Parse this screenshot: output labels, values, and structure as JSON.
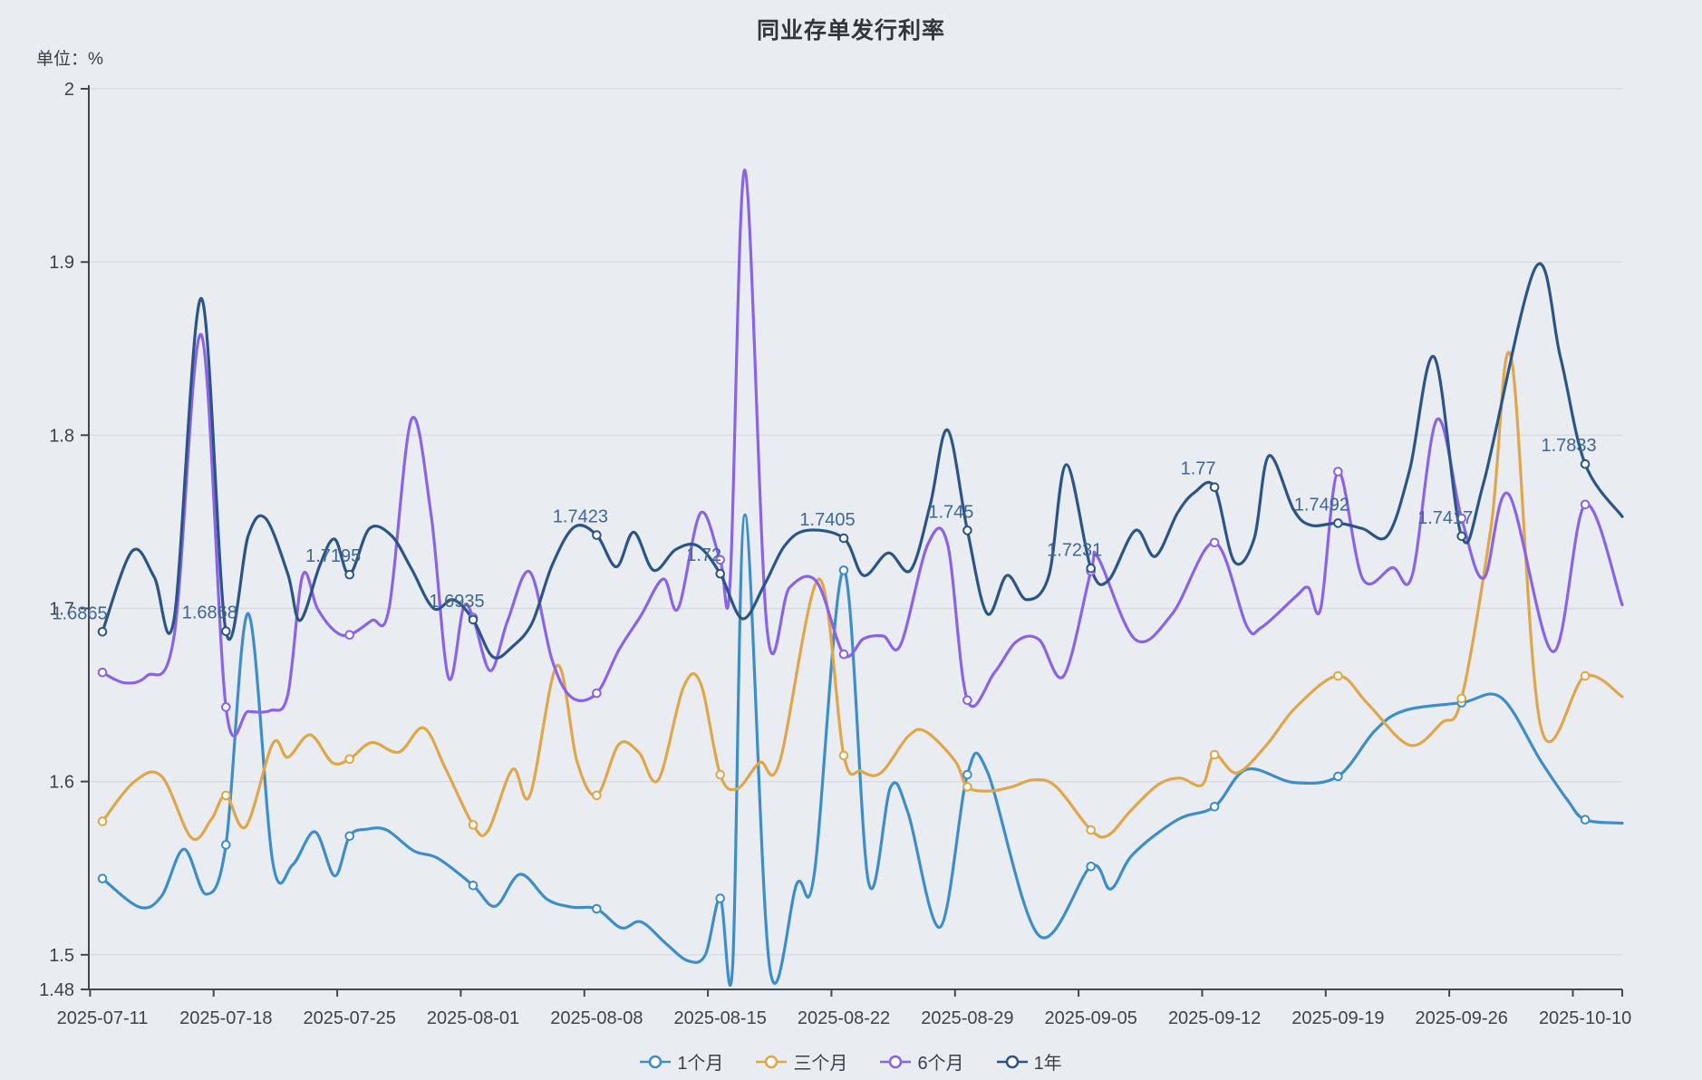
{
  "page": {
    "background": "#e9edf2"
  },
  "chart_data": {
    "type": "line",
    "title": "同业存单发行利率",
    "unit_label": "单位：%",
    "colors": {
      "background": "#e9edf2",
      "grid": "#d6dae0",
      "axis": "#44484e",
      "tick_text": "#3f4347",
      "title_text": "#33373c",
      "data_label_text": "#3e6791",
      "marker_fill": "#ffffff"
    },
    "y_axis": {
      "min": 1.48,
      "max": 2.0,
      "tick_labels": [
        "2",
        "1.9",
        "1.8",
        "1.7",
        "1.6",
        "1.5",
        "1.48"
      ],
      "tick_values": [
        2,
        1.9,
        1.8,
        1.7,
        1.6,
        1.5,
        1.48
      ],
      "grid_values": [
        2,
        1.9,
        1.8,
        1.7,
        1.6,
        1.5
      ]
    },
    "x_axis": {
      "tick_labels": [
        "2025-07-11",
        "2025-07-18",
        "2025-07-25",
        "2025-08-01",
        "2025-08-08",
        "2025-08-15",
        "2025-08-22",
        "2025-08-29",
        "2025-09-05",
        "2025-09-12",
        "2025-09-19",
        "2025-09-26",
        "2025-10-10"
      ],
      "days_per_tick": 5,
      "total_days": 61.5
    },
    "marker_interval_days": 5,
    "legend": [
      "1个月",
      "三个月",
      "6个月",
      "1年"
    ],
    "series": [
      {
        "name": "1个月",
        "color": "#3d8ec8",
        "points": [
          [
            0,
            1.544
          ],
          [
            1.5,
            1.5275
          ],
          [
            2.4,
            1.534
          ],
          [
            3.3,
            1.561
          ],
          [
            4.2,
            1.535
          ],
          [
            5,
            1.5635
          ],
          [
            5.9,
            1.697
          ],
          [
            6.9,
            1.553
          ],
          [
            7.7,
            1.552
          ],
          [
            8.6,
            1.571
          ],
          [
            9.4,
            1.5455
          ],
          [
            10,
            1.5685
          ],
          [
            10.7,
            1.5725
          ],
          [
            11.5,
            1.572
          ],
          [
            12.6,
            1.56
          ],
          [
            13.6,
            1.5555
          ],
          [
            15,
            1.54
          ],
          [
            15.9,
            1.528
          ],
          [
            16.9,
            1.5465
          ],
          [
            18,
            1.532
          ],
          [
            19,
            1.5275
          ],
          [
            20,
            1.5265
          ],
          [
            21,
            1.5155
          ],
          [
            21.8,
            1.519
          ],
          [
            22.8,
            1.5065
          ],
          [
            23.7,
            1.4965
          ],
          [
            24.4,
            1.5
          ],
          [
            25,
            1.5325
          ],
          [
            25.5,
            1.4925
          ],
          [
            26,
            1.754
          ],
          [
            27,
            1.493
          ],
          [
            28.1,
            1.541
          ],
          [
            28.8,
            1.546
          ],
          [
            30,
            1.722
          ],
          [
            31,
            1.542
          ],
          [
            31.9,
            1.597
          ],
          [
            32.6,
            1.582
          ],
          [
            33.9,
            1.516
          ],
          [
            35,
            1.604
          ],
          [
            35.8,
            1.606
          ],
          [
            37.9,
            1.511
          ],
          [
            40,
            1.551
          ],
          [
            40.8,
            1.538
          ],
          [
            41.7,
            1.558
          ],
          [
            43.5,
            1.578
          ],
          [
            45,
            1.5855
          ],
          [
            46.3,
            1.607
          ],
          [
            48.2,
            1.5995
          ],
          [
            50,
            1.603
          ],
          [
            51.5,
            1.6295
          ],
          [
            52.7,
            1.641
          ],
          [
            55,
            1.6455
          ],
          [
            56.6,
            1.6485
          ],
          [
            58.2,
            1.612
          ],
          [
            59.3,
            1.589
          ],
          [
            60,
            1.578
          ],
          [
            61.5,
            1.576
          ]
        ]
      },
      {
        "name": "三个月",
        "color": "#dfa64a",
        "points": [
          [
            0,
            1.577
          ],
          [
            1.3,
            1.6
          ],
          [
            2.4,
            1.603
          ],
          [
            3.6,
            1.5675
          ],
          [
            4.4,
            1.578
          ],
          [
            5,
            1.592
          ],
          [
            5.8,
            1.574
          ],
          [
            6.9,
            1.622
          ],
          [
            7.5,
            1.614
          ],
          [
            8.4,
            1.627
          ],
          [
            9.3,
            1.611
          ],
          [
            10,
            1.613
          ],
          [
            10.9,
            1.6225
          ],
          [
            12,
            1.617
          ],
          [
            13,
            1.631
          ],
          [
            13.9,
            1.607
          ],
          [
            15,
            1.575
          ],
          [
            15.6,
            1.5715
          ],
          [
            16.6,
            1.607
          ],
          [
            17.3,
            1.592
          ],
          [
            18.4,
            1.667
          ],
          [
            19.2,
            1.612
          ],
          [
            20,
            1.592
          ],
          [
            20.9,
            1.6215
          ],
          [
            21.7,
            1.617
          ],
          [
            22.5,
            1.601
          ],
          [
            23.5,
            1.654
          ],
          [
            24.2,
            1.657
          ],
          [
            25,
            1.604
          ],
          [
            25.7,
            1.596
          ],
          [
            26.6,
            1.611
          ],
          [
            27.4,
            1.611
          ],
          [
            29,
            1.717
          ],
          [
            30,
            1.615
          ],
          [
            30.7,
            1.606
          ],
          [
            31.5,
            1.605
          ],
          [
            32.6,
            1.626
          ],
          [
            33.3,
            1.629
          ],
          [
            34.5,
            1.612
          ],
          [
            35,
            1.597
          ],
          [
            35.9,
            1.5945
          ],
          [
            36.8,
            1.597
          ],
          [
            37.7,
            1.601
          ],
          [
            38.6,
            1.597
          ],
          [
            40,
            1.572
          ],
          [
            40.7,
            1.569
          ],
          [
            41.6,
            1.583
          ],
          [
            42.7,
            1.598
          ],
          [
            43.6,
            1.602
          ],
          [
            44.5,
            1.598
          ],
          [
            45,
            1.6155
          ],
          [
            45.9,
            1.605
          ],
          [
            47.1,
            1.621
          ],
          [
            48.3,
            1.643
          ],
          [
            50,
            1.661
          ],
          [
            51.2,
            1.645
          ],
          [
            52.9,
            1.621
          ],
          [
            54.2,
            1.634
          ],
          [
            55,
            1.648
          ],
          [
            56.2,
            1.748
          ],
          [
            57,
            1.845
          ],
          [
            58.2,
            1.632
          ],
          [
            60,
            1.661
          ],
          [
            61.5,
            1.649
          ]
        ]
      },
      {
        "name": "6个月",
        "color": "#8a63e6",
        "points": [
          [
            0,
            1.663
          ],
          [
            0.9,
            1.657
          ],
          [
            1.8,
            1.661
          ],
          [
            2.9,
            1.684
          ],
          [
            4,
            1.858
          ],
          [
            5,
            1.643
          ],
          [
            5.9,
            1.6405
          ],
          [
            6.8,
            1.641
          ],
          [
            7.5,
            1.65
          ],
          [
            8.1,
            1.719
          ],
          [
            8.7,
            1.7
          ],
          [
            9.4,
            1.687
          ],
          [
            10,
            1.6847
          ],
          [
            10.9,
            1.693
          ],
          [
            11.6,
            1.7
          ],
          [
            12.5,
            1.809
          ],
          [
            13.3,
            1.754
          ],
          [
            14,
            1.66
          ],
          [
            14.6,
            1.7
          ],
          [
            15,
            1.6947
          ],
          [
            15.7,
            1.664
          ],
          [
            16.4,
            1.693
          ],
          [
            17.3,
            1.721
          ],
          [
            18.2,
            1.67
          ],
          [
            19,
            1.6485
          ],
          [
            20,
            1.651
          ],
          [
            20.9,
            1.676
          ],
          [
            21.8,
            1.696
          ],
          [
            22.7,
            1.717
          ],
          [
            23.3,
            1.7
          ],
          [
            24.2,
            1.755
          ],
          [
            25,
            1.728
          ],
          [
            25.4,
            1.715
          ],
          [
            26,
            1.953
          ],
          [
            26.9,
            1.6875
          ],
          [
            27.8,
            1.712
          ],
          [
            28.9,
            1.7155
          ],
          [
            30,
            1.6735
          ],
          [
            30.8,
            1.6825
          ],
          [
            31.6,
            1.684
          ],
          [
            32.3,
            1.679
          ],
          [
            33.4,
            1.737
          ],
          [
            34.2,
            1.737
          ],
          [
            35,
            1.647
          ],
          [
            36.1,
            1.663
          ],
          [
            37,
            1.681
          ],
          [
            37.9,
            1.682
          ],
          [
            38.9,
            1.661
          ],
          [
            40,
            1.7215
          ],
          [
            40.3,
            1.729
          ],
          [
            41.8,
            1.682
          ],
          [
            43.3,
            1.697
          ],
          [
            45,
            1.738
          ],
          [
            46.3,
            1.69
          ],
          [
            46.9,
            1.689
          ],
          [
            48.3,
            1.707
          ],
          [
            48.8,
            1.712
          ],
          [
            49.3,
            1.7
          ],
          [
            50,
            1.779
          ],
          [
            51,
            1.717
          ],
          [
            52.2,
            1.7235
          ],
          [
            53,
            1.719
          ],
          [
            54,
            1.809
          ],
          [
            55,
            1.752
          ],
          [
            55.9,
            1.7175
          ],
          [
            56.9,
            1.766
          ],
          [
            58.7,
            1.675
          ],
          [
            60,
            1.76
          ],
          [
            61.5,
            1.702
          ]
        ]
      },
      {
        "name": "1年",
        "color": "#2b5586",
        "points": [
          [
            0,
            1.6865
          ],
          [
            1.2,
            1.733
          ],
          [
            2.1,
            1.718
          ],
          [
            2.9,
            1.694
          ],
          [
            4,
            1.879
          ],
          [
            5,
            1.6868
          ],
          [
            5.9,
            1.742
          ],
          [
            6.6,
            1.752
          ],
          [
            7.5,
            1.72
          ],
          [
            8,
            1.693
          ],
          [
            8.8,
            1.725
          ],
          [
            9.4,
            1.74
          ],
          [
            10,
            1.7195
          ],
          [
            10.8,
            1.746
          ],
          [
            11.7,
            1.742
          ],
          [
            12.5,
            1.723
          ],
          [
            13.4,
            1.7
          ],
          [
            14.2,
            1.705
          ],
          [
            15,
            1.6935
          ],
          [
            15.8,
            1.672
          ],
          [
            16.6,
            1.678
          ],
          [
            17.4,
            1.692
          ],
          [
            18.2,
            1.725
          ],
          [
            19.1,
            1.747
          ],
          [
            20,
            1.7423
          ],
          [
            20.8,
            1.724
          ],
          [
            21.5,
            1.744
          ],
          [
            22.3,
            1.722
          ],
          [
            23.2,
            1.734
          ],
          [
            24.1,
            1.736
          ],
          [
            25,
            1.72
          ],
          [
            25.9,
            1.694
          ],
          [
            26.8,
            1.714
          ],
          [
            27.6,
            1.736
          ],
          [
            28.5,
            1.745
          ],
          [
            30,
            1.7405
          ],
          [
            30.8,
            1.719
          ],
          [
            31.8,
            1.732
          ],
          [
            32.7,
            1.722
          ],
          [
            33.5,
            1.76
          ],
          [
            34.2,
            1.803
          ],
          [
            35,
            1.745
          ],
          [
            35.8,
            1.697
          ],
          [
            36.6,
            1.719
          ],
          [
            37.4,
            1.705
          ],
          [
            38.3,
            1.719
          ],
          [
            39,
            1.783
          ],
          [
            40,
            1.7231
          ],
          [
            40.7,
            1.716
          ],
          [
            41.8,
            1.745
          ],
          [
            42.6,
            1.73
          ],
          [
            43.5,
            1.755
          ],
          [
            44.2,
            1.767
          ],
          [
            45,
            1.77
          ],
          [
            45.8,
            1.727
          ],
          [
            46.6,
            1.74
          ],
          [
            47.2,
            1.788
          ],
          [
            48.2,
            1.757
          ],
          [
            48.9,
            1.748
          ],
          [
            50,
            1.7492
          ],
          [
            51,
            1.746
          ],
          [
            52,
            1.742
          ],
          [
            52.9,
            1.78
          ],
          [
            53.9,
            1.845
          ],
          [
            55,
            1.7417
          ],
          [
            55.9,
            1.773
          ],
          [
            58,
            1.897
          ],
          [
            59,
            1.845
          ],
          [
            60,
            1.7833
          ],
          [
            61.5,
            1.753
          ]
        ],
        "point_labels": [
          "1.6865",
          "1.6868",
          "1.7195",
          "1.6935",
          "1.7423",
          "1.72",
          "1.7405",
          "1.745",
          "1.7231",
          "1.77",
          "1.7492",
          "1.7417",
          "1.7833"
        ]
      }
    ]
  }
}
